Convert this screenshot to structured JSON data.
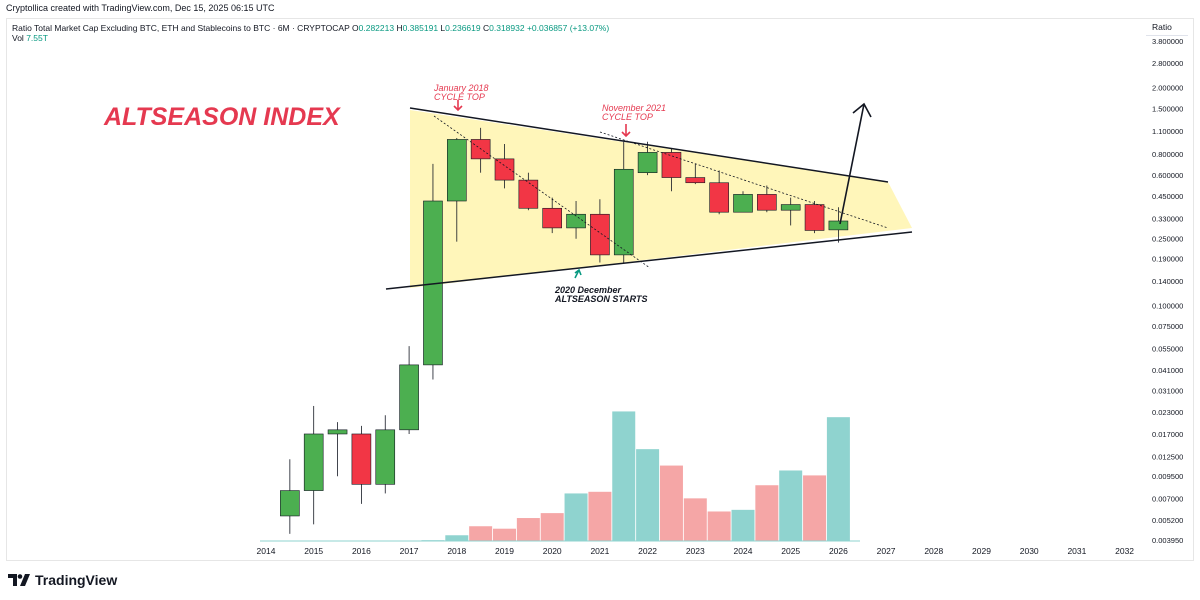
{
  "header": {
    "credit": "Cryptollica created with TradingView.com, Dec 15, 2025 06:15 UTC",
    "symbol": "Ratio Total Market Cap Excluding BTC, ETH and Stablecoins to BTC · 6M · CRYPTOCAP",
    "open_label": "O",
    "open": "0.282213",
    "high_label": "H",
    "high": "0.385191",
    "low_label": "L",
    "low": "0.236619",
    "close_label": "C",
    "close": "0.318932",
    "change": "+0.036857 (+13.07%)",
    "vol_label": "Vol",
    "vol_value": "7.55T",
    "ratio_label": "Ratio"
  },
  "footer": {
    "brand": "TradingView"
  },
  "colors": {
    "up": "#4caf50",
    "down": "#f23645",
    "vol_up": "#8fd3cf",
    "vol_down": "#f5a6a6",
    "title": "#e53950",
    "annotation": "#e53950",
    "wedge_fill": "#fff6b6",
    "arrow": "#131722"
  },
  "chart_data": {
    "type": "candlestick",
    "y_scale": "log",
    "y_ticks": [
      "3.800000",
      "2.800000",
      "2.000000",
      "1.500000",
      "1.100000",
      "0.800000",
      "0.600000",
      "0.450000",
      "0.330000",
      "0.250000",
      "0.190000",
      "0.140000",
      "0.100000",
      "0.075000",
      "0.055000",
      "0.041000",
      "0.031000",
      "0.023000",
      "0.017000",
      "0.012500",
      "0.009500",
      "0.007000",
      "0.005200",
      "0.003950"
    ],
    "x_ticks": [
      "2014",
      "2015",
      "2016",
      "2017",
      "2018",
      "2019",
      "2020",
      "2021",
      "2022",
      "2023",
      "2024",
      "2025",
      "2026",
      "2027",
      "2028",
      "2029",
      "2030",
      "2031",
      "2032"
    ],
    "candles": [
      {
        "t": 2014.5,
        "o": 0.0055,
        "h": 0.012,
        "l": 0.0043,
        "c": 0.0078,
        "v": 0.0
      },
      {
        "t": 2015.0,
        "o": 0.0078,
        "h": 0.025,
        "l": 0.0049,
        "c": 0.017,
        "v": 0.0
      },
      {
        "t": 2015.5,
        "o": 0.017,
        "h": 0.02,
        "l": 0.0095,
        "c": 0.018,
        "v": 0.0
      },
      {
        "t": 2016.0,
        "o": 0.017,
        "h": 0.019,
        "l": 0.0065,
        "c": 0.0085,
        "v": 0.0
      },
      {
        "t": 2016.5,
        "o": 0.0085,
        "h": 0.022,
        "l": 0.0075,
        "c": 0.018,
        "v": 0.0
      },
      {
        "t": 2017.0,
        "o": 0.018,
        "h": 0.057,
        "l": 0.017,
        "c": 0.044,
        "v": 0.0
      },
      {
        "t": 2017.5,
        "o": 0.044,
        "h": 0.7,
        "l": 0.036,
        "c": 0.42,
        "v": 0.05
      },
      {
        "t": 2018.0,
        "o": 0.42,
        "h": 1.0,
        "l": 0.24,
        "c": 0.98,
        "v": 0.35
      },
      {
        "t": 2018.5,
        "o": 0.98,
        "h": 1.15,
        "l": 0.62,
        "c": 0.75,
        "v": 0.9
      },
      {
        "t": 2019.0,
        "o": 0.75,
        "h": 0.92,
        "l": 0.5,
        "c": 0.56,
        "v": 0.75
      },
      {
        "t": 2019.5,
        "o": 0.56,
        "h": 0.62,
        "l": 0.37,
        "c": 0.38,
        "v": 1.4
      },
      {
        "t": 2020.0,
        "o": 0.38,
        "h": 0.44,
        "l": 0.27,
        "c": 0.29,
        "v": 1.7
      },
      {
        "t": 2020.5,
        "o": 0.29,
        "h": 0.42,
        "l": 0.25,
        "c": 0.35,
        "v": 2.9
      },
      {
        "t": 2021.0,
        "o": 0.35,
        "h": 0.43,
        "l": 0.18,
        "c": 0.2,
        "v": 3.0
      },
      {
        "t": 2021.5,
        "o": 0.2,
        "h": 0.95,
        "l": 0.18,
        "c": 0.65,
        "v": 7.9
      },
      {
        "t": 2022.0,
        "o": 0.62,
        "h": 0.95,
        "l": 0.6,
        "c": 0.82,
        "v": 5.6
      },
      {
        "t": 2022.5,
        "o": 0.82,
        "h": 0.86,
        "l": 0.48,
        "c": 0.58,
        "v": 4.6
      },
      {
        "t": 2023.0,
        "o": 0.58,
        "h": 0.7,
        "l": 0.53,
        "c": 0.54,
        "v": 2.6
      },
      {
        "t": 2023.5,
        "o": 0.54,
        "h": 0.64,
        "l": 0.35,
        "c": 0.36,
        "v": 1.8
      },
      {
        "t": 2024.0,
        "o": 0.36,
        "h": 0.48,
        "l": 0.36,
        "c": 0.46,
        "v": 1.9
      },
      {
        "t": 2024.5,
        "o": 0.46,
        "h": 0.52,
        "l": 0.36,
        "c": 0.37,
        "v": 3.4
      },
      {
        "t": 2025.0,
        "o": 0.37,
        "h": 0.44,
        "l": 0.3,
        "c": 0.4,
        "v": 4.3
      },
      {
        "t": 2025.5,
        "o": 0.4,
        "h": 0.42,
        "l": 0.27,
        "c": 0.28,
        "v": 4.0
      },
      {
        "t": 2026.0,
        "o": 0.282213,
        "h": 0.385191,
        "l": 0.236619,
        "c": 0.318932,
        "v": 7.55
      }
    ],
    "annotations": {
      "title": "ALTSEASON INDEX",
      "top_2018_line1": "January 2018",
      "top_2018_line2": "CYCLE TOP",
      "top_2021_line1": "November 2021",
      "top_2021_line2": "CYCLE TOP",
      "start_line1": "2020 December",
      "start_line2": "ALTSEASON STARTS"
    }
  }
}
